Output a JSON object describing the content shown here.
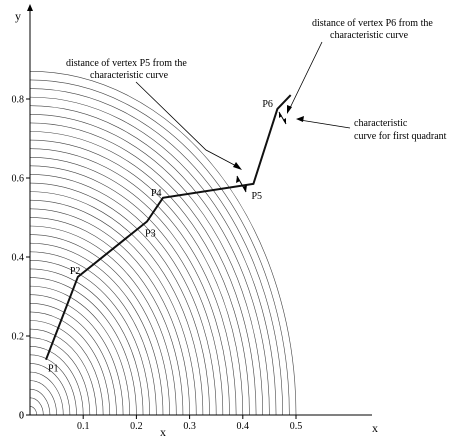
{
  "chart_data": {
    "type": "line",
    "title": "",
    "xlabel": "x",
    "xlabel_secondary": "x",
    "ylabel": "y",
    "xlim": [
      0,
      0.5
    ],
    "ylim": [
      0,
      0.9
    ],
    "x_ticks": [
      "0.1",
      "0.2",
      "0.3",
      "0.4",
      "0.5"
    ],
    "y_ticks": [
      "0",
      "0.2",
      "0.4",
      "0.6",
      "0.8"
    ],
    "origin_label": "0",
    "grid": false,
    "legend": "none",
    "background_curves": {
      "description_shown": false,
      "count": 40,
      "family": "concentric arcs from the y-axis down to the x-axis",
      "max_radius_x": 0.5,
      "max_radius_y": 0.87
    },
    "series": [
      {
        "name": "",
        "points": [
          {
            "label": "P1",
            "x": 0.03,
            "y": 0.14
          },
          {
            "label": "P2",
            "x": 0.09,
            "y": 0.35
          },
          {
            "label": "P3",
            "x": 0.22,
            "y": 0.49
          },
          {
            "label": "P4",
            "x": 0.25,
            "y": 0.55
          },
          {
            "label": "P5",
            "x": 0.42,
            "y": 0.585
          },
          {
            "label": "P6",
            "x": 0.465,
            "y": 0.775
          },
          {
            "label": "",
            "x": 0.49,
            "y": 0.81
          }
        ]
      }
    ],
    "annotations": [
      {
        "id": "p5",
        "lines": [
          "distance of vertex P5 from the",
          "characteristic curve"
        ]
      },
      {
        "id": "p6",
        "lines": [
          "distance of vertex P6 from the",
          "characteristic curve"
        ]
      },
      {
        "id": "cc",
        "lines": [
          "characteristic",
          "curve for first quadrant"
        ]
      }
    ],
    "colors": {
      "curves": "#444444",
      "polyline": "#111111",
      "axes": "#000000"
    }
  }
}
